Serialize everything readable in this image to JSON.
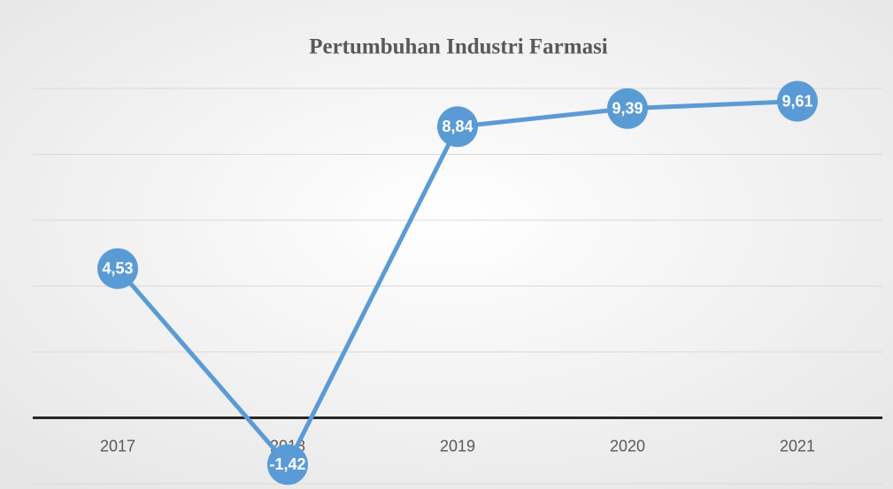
{
  "chart_data": {
    "type": "line",
    "title": "Pertumbuhan Industri Farmasi",
    "categories": [
      "2017",
      "2018",
      "2019",
      "2020",
      "2021"
    ],
    "series": [
      {
        "name": "Pertumbuhan",
        "color": "#5b9bd5",
        "values": [
          4.53,
          -1.42,
          8.84,
          9.39,
          9.61
        ],
        "value_labels": [
          "4,53",
          "-1,42",
          "8,84",
          "9,39",
          "9,61"
        ]
      }
    ],
    "ylim": [
      -2,
      10
    ],
    "yticks": [
      -2,
      0,
      2,
      4,
      6,
      8,
      10
    ],
    "grid": true
  }
}
